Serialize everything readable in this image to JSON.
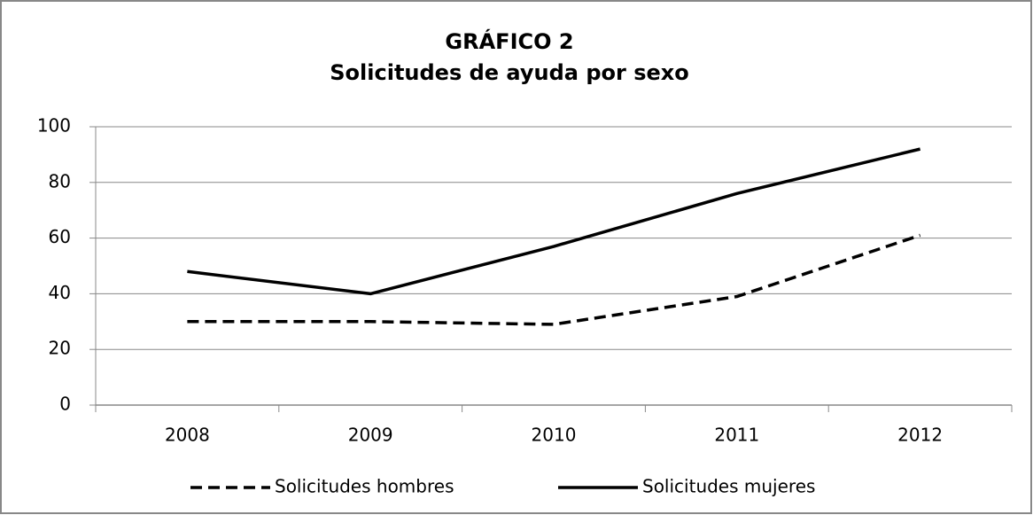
{
  "chart_data": {
    "type": "line",
    "title": "GRÁFICO 2",
    "subtitle": "Solicitudes de ayuda por sexo",
    "categories": [
      "2008",
      "2009",
      "2010",
      "2011",
      "2012"
    ],
    "series": [
      {
        "name": "Solicitudes hombres",
        "color": "#000000",
        "style": "dashed",
        "values": [
          30,
          30,
          29,
          39,
          61
        ]
      },
      {
        "name": "Solicitudes mujeres",
        "color": "#000000",
        "style": "solid",
        "values": [
          48,
          40,
          57,
          76,
          92
        ]
      }
    ],
    "ylim": [
      0,
      100
    ],
    "yticks": [
      0,
      20,
      40,
      60,
      80,
      100
    ],
    "grid": true,
    "legend": "bottom"
  }
}
